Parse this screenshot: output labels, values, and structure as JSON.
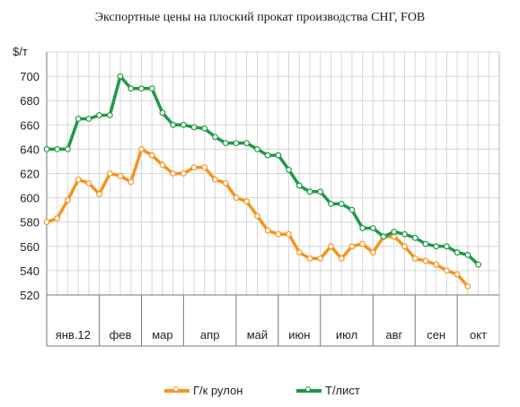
{
  "chart_data": {
    "type": "line",
    "title": "Экспортные цены на плоский прокат производства СНГ, FOB",
    "ylabel": "$/т",
    "ylim": [
      520,
      720
    ],
    "yticks": [
      520,
      540,
      560,
      580,
      600,
      620,
      640,
      660,
      680,
      700
    ],
    "grid": true,
    "legend_position": "bottom",
    "months": [
      "янв.12",
      "фев",
      "мар",
      "апр",
      "май",
      "июн",
      "июл",
      "авг",
      "сен",
      "окт"
    ],
    "weeks_per_month": [
      5,
      4,
      4,
      5,
      4,
      4,
      5,
      4,
      4,
      4
    ],
    "series": [
      {
        "name": "Г/к рулон",
        "color": "#f7941d",
        "values": [
          580,
          583,
          598,
          615,
          612,
          603,
          620,
          618,
          613,
          640,
          635,
          627,
          620,
          620,
          625,
          625,
          615,
          612,
          600,
          597,
          585,
          573,
          570,
          570,
          555,
          550,
          550,
          560,
          550,
          560,
          562,
          555,
          568,
          568,
          560,
          550,
          548,
          545,
          540,
          537,
          527
        ]
      },
      {
        "name": "Т/лист",
        "color": "#1e9a46",
        "values": [
          640,
          640,
          640,
          665,
          665,
          668,
          668,
          700,
          690,
          690,
          690,
          670,
          660,
          660,
          658,
          657,
          650,
          645,
          645,
          645,
          640,
          635,
          635,
          623,
          610,
          605,
          605,
          595,
          595,
          590,
          575,
          575,
          568,
          572,
          570,
          567,
          562,
          560,
          560,
          555,
          553,
          545
        ]
      }
    ]
  }
}
